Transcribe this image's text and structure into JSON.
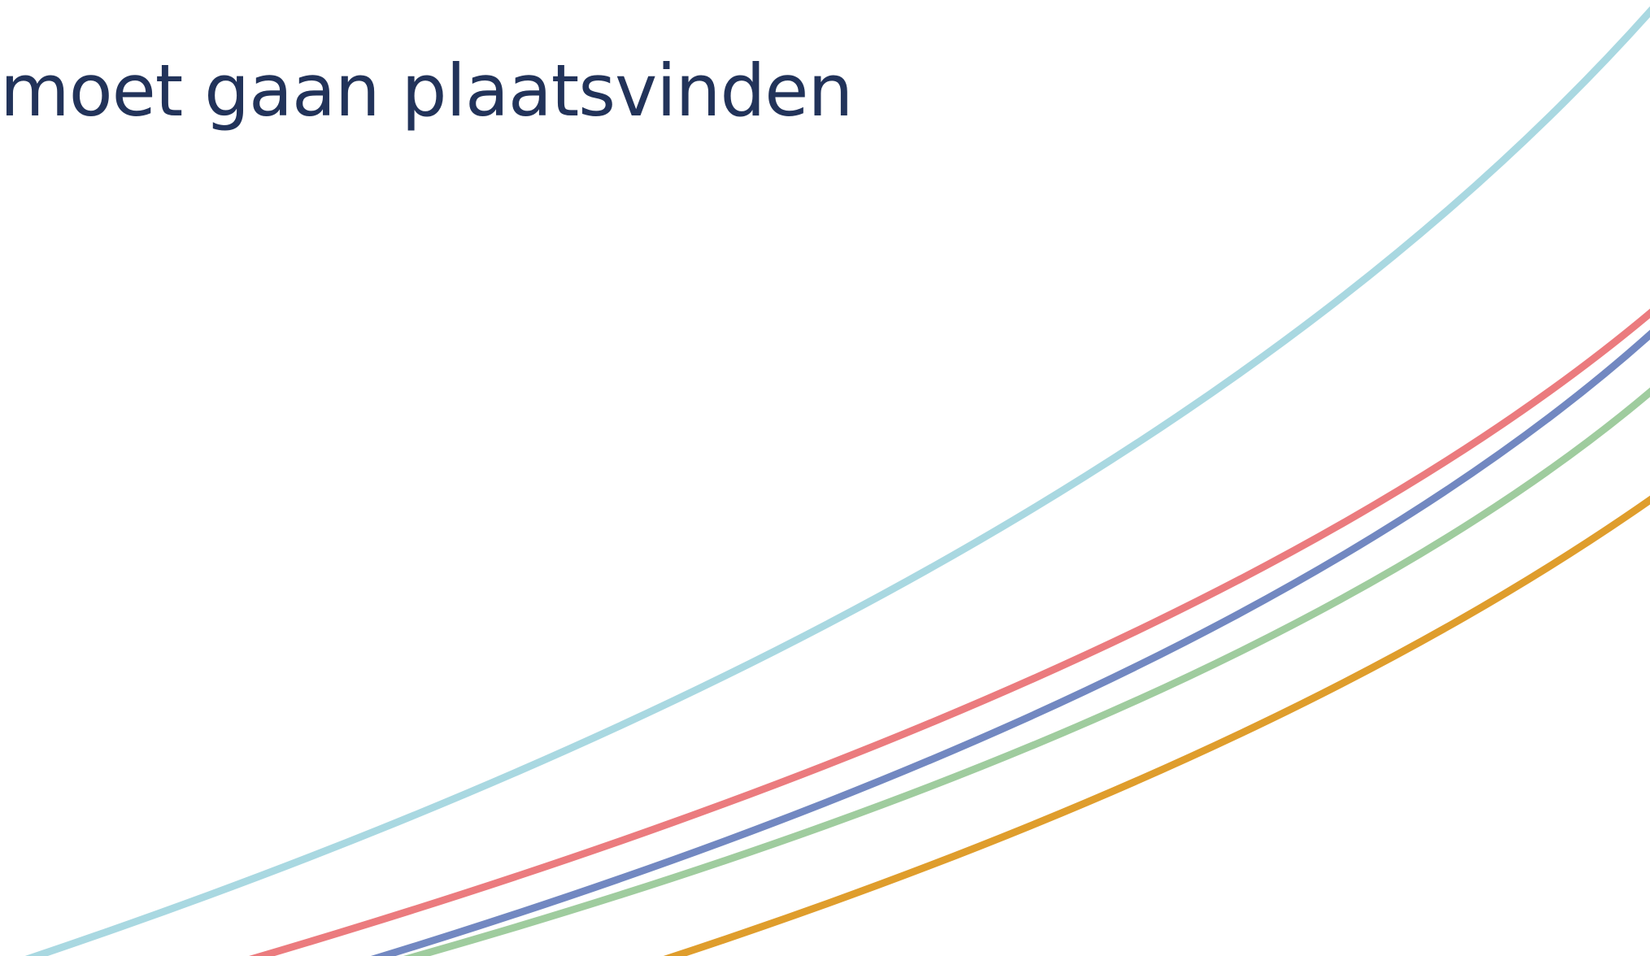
{
  "heading": {
    "text": "moet gaan plaatsvinden",
    "color": "#22335a"
  },
  "background_color": "#ffffff",
  "decorative_curves": [
    {
      "name": "light-blue-curve",
      "color": "#a9d8e1"
    },
    {
      "name": "red-curve",
      "color": "#eb7b7e"
    },
    {
      "name": "blue-curve",
      "color": "#7288c1"
    },
    {
      "name": "green-curve",
      "color": "#9fcc9e"
    },
    {
      "name": "orange-curve",
      "color": "#df9d2c"
    }
  ]
}
